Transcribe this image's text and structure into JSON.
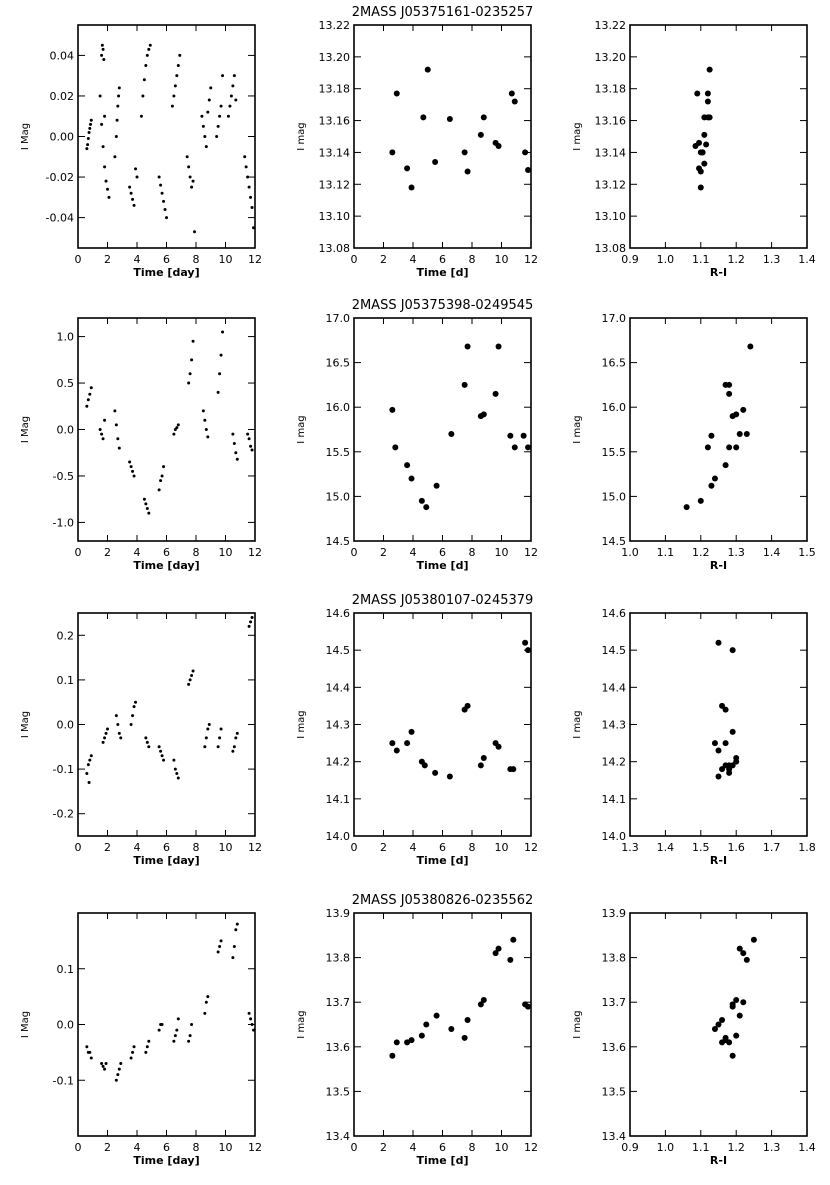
{
  "chart_data": [
    {
      "type": "scatter",
      "title": "",
      "xlabel": "Time [day]",
      "ylabel": "I Mag",
      "xlim": [
        0,
        12
      ],
      "ylim": [
        0.055,
        -0.055
      ],
      "xticks": [
        "0",
        "2",
        "4",
        "6",
        "8",
        "10",
        "12"
      ],
      "yticks": [
        "-0.04",
        "-0.02",
        "0.00",
        "0.02",
        "0.04"
      ],
      "marker": "small",
      "x": [
        0.6,
        0.65,
        0.7,
        0.75,
        0.8,
        0.85,
        0.9,
        1.5,
        1.6,
        1.7,
        1.8,
        1.9,
        2.0,
        2.1,
        1.6,
        1.7,
        1.8,
        2.5,
        2.6,
        2.65,
        2.7,
        2.75,
        2.8,
        3.5,
        3.6,
        3.7,
        3.8,
        3.9,
        4.0,
        4.3,
        4.4,
        4.5,
        4.6,
        4.7,
        4.8,
        4.9,
        5.5,
        5.6,
        5.7,
        5.8,
        5.9,
        6.0,
        6.4,
        6.5,
        6.6,
        6.7,
        6.8,
        6.9,
        7.4,
        7.5,
        7.6,
        7.7,
        7.8,
        7.9,
        8.4,
        8.5,
        8.6,
        8.7,
        8.8,
        8.9,
        9.0,
        9.4,
        9.5,
        9.6,
        9.7,
        9.8,
        10.2,
        10.3,
        10.4,
        10.5,
        10.6,
        10.7,
        11.3,
        11.4,
        11.5,
        11.6,
        11.7,
        11.8,
        11.9,
        1.65,
        1.75
      ],
      "y": [
        -0.006,
        -0.004,
        -0.001,
        0.002,
        0.004,
        0.006,
        0.008,
        0.02,
        0.006,
        -0.005,
        -0.015,
        -0.022,
        -0.026,
        -0.03,
        0.04,
        0.043,
        0.01,
        -0.01,
        0.0,
        0.008,
        0.015,
        0.02,
        0.024,
        -0.025,
        -0.028,
        -0.031,
        -0.034,
        -0.016,
        -0.02,
        0.01,
        0.02,
        0.028,
        0.035,
        0.04,
        0.043,
        0.045,
        -0.02,
        -0.024,
        -0.028,
        -0.032,
        -0.036,
        -0.04,
        0.015,
        0.02,
        0.025,
        0.03,
        0.035,
        0.04,
        -0.01,
        -0.015,
        -0.02,
        -0.025,
        -0.022,
        -0.047,
        0.01,
        0.005,
        0.0,
        -0.005,
        0.012,
        0.018,
        0.024,
        0.0,
        0.005,
        0.01,
        0.015,
        0.03,
        0.01,
        0.015,
        0.02,
        0.025,
        0.03,
        0.018,
        -0.01,
        -0.015,
        -0.02,
        -0.025,
        -0.03,
        -0.035,
        -0.045,
        0.045,
        0.038
      ]
    },
    {
      "type": "scatter",
      "title": "2MASS J05375161-0235257",
      "xlabel": "Time [d]",
      "ylabel": "I mag",
      "xlim": [
        0,
        12
      ],
      "ylim": [
        13.22,
        13.08
      ],
      "xticks": [
        "0",
        "2",
        "4",
        "6",
        "8",
        "10",
        "12"
      ],
      "yticks": [
        "13.08",
        "13.10",
        "13.12",
        "13.14",
        "13.16",
        "13.18",
        "13.20",
        "13.22"
      ],
      "marker": "large",
      "x": [
        2.6,
        2.9,
        3.6,
        3.9,
        4.7,
        5.0,
        5.5,
        6.5,
        7.5,
        7.7,
        8.6,
        8.8,
        9.6,
        9.8,
        10.7,
        10.9,
        11.6,
        11.8
      ],
      "y": [
        13.14,
        13.177,
        13.13,
        13.118,
        13.162,
        13.192,
        13.134,
        13.161,
        13.14,
        13.128,
        13.151,
        13.162,
        13.146,
        13.144,
        13.177,
        13.172,
        13.14,
        13.129
      ]
    },
    {
      "type": "scatter",
      "title": "",
      "xlabel": "R-I",
      "ylabel": "I mag",
      "xlim": [
        0.9,
        1.4
      ],
      "ylim": [
        13.22,
        13.08
      ],
      "xticks": [
        "0.9",
        "1.0",
        "1.1",
        "1.2",
        "1.3",
        "1.4"
      ],
      "yticks": [
        "13.08",
        "13.10",
        "13.12",
        "13.14",
        "13.16",
        "13.18",
        "13.20",
        "13.22"
      ],
      "marker": "large",
      "x": [
        1.1,
        1.095,
        1.11,
        1.1,
        1.105,
        1.1,
        1.115,
        1.095,
        1.11,
        1.12,
        1.085,
        1.125,
        1.12,
        1.105,
        1.12,
        1.11,
        1.125,
        1.09
      ],
      "y": [
        13.118,
        13.13,
        13.133,
        13.128,
        13.14,
        13.14,
        13.145,
        13.146,
        13.151,
        13.162,
        13.144,
        13.162,
        13.172,
        13.14,
        13.177,
        13.162,
        13.192,
        13.177
      ]
    },
    {
      "type": "scatter",
      "title": "",
      "xlabel": "Time [day]",
      "ylabel": "I Mag",
      "xlim": [
        0,
        12
      ],
      "ylim": [
        1.2,
        -1.2
      ],
      "xticks": [
        "0",
        "2",
        "4",
        "6",
        "8",
        "10",
        "12"
      ],
      "yticks": [
        "-1.0",
        "-0.5",
        "0.0",
        "0.5",
        "1.0"
      ],
      "marker": "small",
      "x": [
        0.6,
        0.7,
        0.8,
        0.9,
        1.5,
        1.6,
        1.7,
        1.8,
        2.5,
        2.6,
        2.7,
        2.8,
        3.5,
        3.6,
        3.7,
        3.8,
        4.5,
        4.6,
        4.7,
        4.8,
        5.5,
        5.6,
        5.7,
        5.8,
        6.5,
        6.6,
        6.7,
        6.8,
        7.5,
        7.6,
        7.7,
        7.8,
        8.5,
        8.6,
        8.7,
        8.8,
        9.5,
        9.6,
        9.7,
        9.8,
        10.5,
        10.6,
        10.7,
        10.8,
        11.5,
        11.6,
        11.7,
        11.8
      ],
      "y": [
        0.25,
        0.32,
        0.38,
        0.45,
        0.0,
        -0.05,
        -0.1,
        0.1,
        0.2,
        0.05,
        -0.1,
        -0.2,
        -0.35,
        -0.4,
        -0.45,
        -0.5,
        -0.75,
        -0.8,
        -0.85,
        -0.9,
        -0.65,
        -0.55,
        -0.5,
        -0.4,
        -0.05,
        0.0,
        0.02,
        0.05,
        0.5,
        0.6,
        0.75,
        0.95,
        0.2,
        0.1,
        0.0,
        -0.08,
        0.4,
        0.6,
        0.8,
        1.05,
        -0.05,
        -0.15,
        -0.25,
        -0.32,
        -0.05,
        -0.1,
        -0.18,
        -0.22
      ]
    },
    {
      "type": "scatter",
      "title": "2MASS J05375398-0249545",
      "xlabel": "Time [d]",
      "ylabel": "I mag",
      "xlim": [
        0,
        12
      ],
      "ylim": [
        17.0,
        14.5
      ],
      "xticks": [
        "0",
        "2",
        "4",
        "6",
        "8",
        "10",
        "12"
      ],
      "yticks": [
        "14.5",
        "15.0",
        "15.5",
        "16.0",
        "16.5",
        "17.0"
      ],
      "marker": "large",
      "x": [
        2.6,
        2.8,
        3.6,
        3.9,
        4.6,
        4.9,
        5.6,
        6.6,
        7.5,
        7.7,
        8.6,
        8.8,
        9.6,
        9.8,
        10.6,
        10.9,
        11.5,
        11.8
      ],
      "y": [
        15.97,
        15.55,
        15.35,
        15.2,
        14.95,
        14.88,
        15.12,
        15.7,
        16.25,
        16.68,
        15.9,
        15.92,
        16.15,
        16.68,
        15.68,
        15.55,
        15.68,
        15.55
      ]
    },
    {
      "type": "scatter",
      "title": "",
      "xlabel": "R-I",
      "ylabel": "I mag",
      "xlim": [
        1.0,
        1.5
      ],
      "ylim": [
        17.0,
        14.5
      ],
      "xticks": [
        "1.0",
        "1.1",
        "1.2",
        "1.3",
        "1.4",
        "1.5"
      ],
      "yticks": [
        "14.5",
        "15.0",
        "15.5",
        "16.0",
        "16.5",
        "17.0"
      ],
      "marker": "large",
      "x": [
        1.16,
        1.2,
        1.23,
        1.24,
        1.27,
        1.28,
        1.3,
        1.31,
        1.33,
        1.22,
        1.29,
        1.28,
        1.3,
        1.32,
        1.28,
        1.27,
        1.34,
        1.23
      ],
      "y": [
        14.88,
        14.95,
        15.12,
        15.2,
        15.35,
        15.55,
        15.55,
        15.7,
        15.7,
        15.55,
        15.9,
        16.15,
        15.92,
        15.97,
        16.25,
        16.25,
        16.68,
        15.68
      ]
    },
    {
      "type": "scatter",
      "title": "",
      "xlabel": "Time [day]",
      "ylabel": "I Mag",
      "xlim": [
        0,
        12
      ],
      "ylim": [
        0.25,
        -0.25
      ],
      "xticks": [
        "0",
        "2",
        "4",
        "6",
        "8",
        "10",
        "12"
      ],
      "yticks": [
        "-0.2",
        "-0.1",
        "0.0",
        "0.1",
        "0.2"
      ],
      "marker": "small",
      "x": [
        0.6,
        0.7,
        0.8,
        0.9,
        0.75,
        1.7,
        1.8,
        1.9,
        2.0,
        2.6,
        2.7,
        2.8,
        2.9,
        3.6,
        3.7,
        3.8,
        3.9,
        4.6,
        4.7,
        4.8,
        5.5,
        5.6,
        5.7,
        5.8,
        6.5,
        6.6,
        6.7,
        6.8,
        7.5,
        7.6,
        7.7,
        7.8,
        8.6,
        8.7,
        8.8,
        8.9,
        9.5,
        9.6,
        9.7,
        10.5,
        10.6,
        10.7,
        10.8,
        11.6,
        11.7,
        11.8
      ],
      "y": [
        -0.11,
        -0.09,
        -0.08,
        -0.07,
        -0.13,
        -0.04,
        -0.03,
        -0.02,
        -0.01,
        0.02,
        0.0,
        -0.02,
        -0.03,
        0.0,
        0.02,
        0.04,
        0.05,
        -0.03,
        -0.04,
        -0.05,
        -0.05,
        -0.06,
        -0.07,
        -0.08,
        -0.08,
        -0.1,
        -0.11,
        -0.12,
        0.09,
        0.1,
        0.11,
        0.12,
        -0.05,
        -0.03,
        -0.01,
        0.0,
        -0.05,
        -0.03,
        -0.01,
        -0.06,
        -0.05,
        -0.03,
        -0.02,
        0.22,
        0.23,
        0.24
      ]
    },
    {
      "type": "scatter",
      "title": "2MASS J05380107-0245379",
      "xlabel": "Time [d]",
      "ylabel": "I mag",
      "xlim": [
        0,
        12
      ],
      "ylim": [
        14.6,
        14.0
      ],
      "xticks": [
        "0",
        "2",
        "4",
        "6",
        "8",
        "10",
        "12"
      ],
      "yticks": [
        "14.0",
        "14.1",
        "14.2",
        "14.3",
        "14.4",
        "14.5",
        "14.6"
      ],
      "marker": "large",
      "x": [
        2.6,
        2.9,
        3.6,
        3.9,
        4.6,
        4.8,
        5.5,
        6.5,
        7.5,
        7.7,
        8.6,
        8.8,
        9.6,
        9.8,
        10.6,
        10.8,
        11.6,
        11.8
      ],
      "y": [
        14.25,
        14.23,
        14.25,
        14.28,
        14.2,
        14.19,
        14.17,
        14.16,
        14.34,
        14.35,
        14.19,
        14.21,
        14.25,
        14.24,
        14.18,
        14.18,
        14.52,
        14.5
      ]
    },
    {
      "type": "scatter",
      "title": "",
      "xlabel": "R-I",
      "ylabel": "I mag",
      "xlim": [
        1.3,
        1.8
      ],
      "ylim": [
        14.6,
        14.0
      ],
      "xticks": [
        "1.3",
        "1.4",
        "1.5",
        "1.6",
        "1.7",
        "1.8"
      ],
      "yticks": [
        "14.0",
        "14.1",
        "14.2",
        "14.3",
        "14.4",
        "14.5",
        "14.6"
      ],
      "marker": "large",
      "x": [
        1.55,
        1.58,
        1.56,
        1.59,
        1.6,
        1.57,
        1.58,
        1.55,
        1.59,
        1.57,
        1.56,
        1.54,
        1.57,
        1.58,
        1.6,
        1.55,
        1.59
      ],
      "y": [
        14.16,
        14.17,
        14.18,
        14.19,
        14.21,
        14.19,
        14.18,
        14.23,
        14.28,
        14.25,
        14.35,
        14.25,
        14.34,
        14.19,
        14.2,
        14.52,
        14.5
      ]
    },
    {
      "type": "scatter",
      "title": "",
      "xlabel": "Time [day]",
      "ylabel": "I Mag",
      "xlim": [
        0,
        12
      ],
      "ylim": [
        0.2,
        -0.2
      ],
      "xticks": [
        "0",
        "2",
        "4",
        "6",
        "8",
        "10",
        "12"
      ],
      "yticks": [
        "-0.1",
        "0.0",
        "0.1"
      ],
      "marker": "small",
      "x": [
        0.6,
        0.7,
        0.8,
        0.9,
        1.6,
        1.7,
        1.8,
        1.9,
        2.6,
        2.7,
        2.8,
        2.9,
        3.6,
        3.7,
        3.8,
        4.6,
        4.7,
        4.8,
        5.5,
        5.6,
        5.7,
        6.5,
        6.6,
        6.7,
        6.8,
        7.5,
        7.6,
        7.7,
        8.6,
        8.7,
        8.8,
        9.5,
        9.6,
        9.7,
        10.5,
        10.6,
        10.7,
        10.8,
        11.6,
        11.7,
        11.8,
        11.9
      ],
      "y": [
        -0.04,
        -0.05,
        -0.05,
        -0.06,
        -0.07,
        -0.075,
        -0.08,
        -0.07,
        -0.1,
        -0.09,
        -0.08,
        -0.07,
        -0.06,
        -0.05,
        -0.04,
        -0.05,
        -0.04,
        -0.03,
        -0.01,
        0.0,
        0.0,
        -0.03,
        -0.02,
        -0.01,
        0.01,
        -0.03,
        -0.02,
        0.0,
        0.02,
        0.04,
        0.05,
        0.13,
        0.14,
        0.15,
        0.12,
        0.14,
        0.17,
        0.18,
        0.02,
        0.01,
        0.0,
        -0.01
      ]
    },
    {
      "type": "scatter",
      "title": "2MASS J05380826-0235562",
      "xlabel": "Time [d]",
      "ylabel": "I mag",
      "xlim": [
        0,
        12
      ],
      "ylim": [
        13.9,
        13.4
      ],
      "xticks": [
        "0",
        "2",
        "4",
        "6",
        "8",
        "10",
        "12"
      ],
      "yticks": [
        "13.4",
        "13.5",
        "13.6",
        "13.7",
        "13.8",
        "13.9"
      ],
      "marker": "large",
      "x": [
        2.6,
        2.9,
        3.6,
        3.9,
        4.6,
        4.9,
        5.6,
        6.6,
        7.5,
        7.7,
        8.6,
        8.8,
        9.6,
        9.8,
        10.6,
        10.8,
        11.6,
        11.8
      ],
      "y": [
        13.58,
        13.61,
        13.61,
        13.615,
        13.625,
        13.65,
        13.67,
        13.64,
        13.62,
        13.66,
        13.695,
        13.705,
        13.81,
        13.82,
        13.795,
        13.84,
        13.695,
        13.69
      ]
    },
    {
      "type": "scatter",
      "title": "",
      "xlabel": "R-I",
      "ylabel": "I mag",
      "xlim": [
        0.9,
        1.4
      ],
      "ylim": [
        13.9,
        13.4
      ],
      "xticks": [
        "0.9",
        "1.0",
        "1.1",
        "1.2",
        "1.3",
        "1.4"
      ],
      "yticks": [
        "13.4",
        "13.5",
        "13.6",
        "13.7",
        "13.8",
        "13.9"
      ],
      "marker": "large",
      "x": [
        1.19,
        1.16,
        1.18,
        1.17,
        1.2,
        1.15,
        1.21,
        1.14,
        1.17,
        1.16,
        1.19,
        1.2,
        1.22,
        1.21,
        1.23,
        1.25,
        1.22,
        1.19
      ],
      "y": [
        13.58,
        13.61,
        13.61,
        13.615,
        13.625,
        13.65,
        13.67,
        13.64,
        13.62,
        13.66,
        13.695,
        13.705,
        13.81,
        13.82,
        13.795,
        13.84,
        13.7,
        13.69
      ]
    }
  ]
}
